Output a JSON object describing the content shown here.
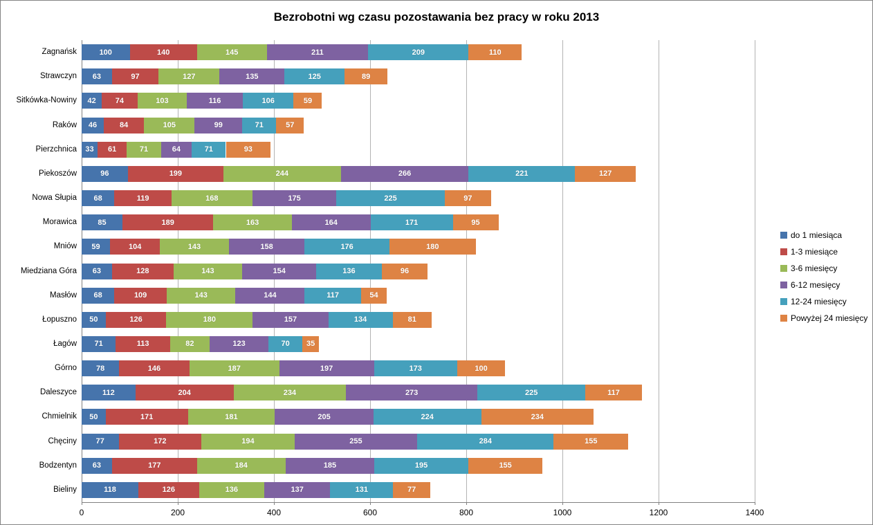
{
  "chart": {
    "title": "Bezrobotni wg czasu pozostawania bez pracy w roku 2013"
  },
  "chart_data": {
    "type": "bar",
    "orientation": "horizontal",
    "stacked": true,
    "title": "Bezrobotni wg czasu pozostawania bez pracy w roku 2013",
    "xlabel": "",
    "ylabel": "",
    "xlim": [
      0,
      1400
    ],
    "x_ticks": [
      0,
      200,
      400,
      600,
      800,
      1000,
      1200,
      1400
    ],
    "grid": "vertical",
    "legend_position": "right",
    "data_labels": true,
    "categories": [
      "Zagnańsk",
      "Strawczyn",
      "Sitkówka-Nowiny",
      "Raków",
      "Pierzchnica",
      "Piekoszów",
      "Nowa Słupia",
      "Morawica",
      "Mniów",
      "Miedziana Góra",
      "Masłów",
      "Łopuszno",
      "Łagów",
      "Górno",
      "Daleszyce",
      "Chmielnik",
      "Chęciny",
      "Bodzentyn",
      "Bieliny"
    ],
    "series": [
      {
        "name": "do 1 miesiąca",
        "color": "#4674ac",
        "values": [
          100,
          63,
          42,
          46,
          33,
          96,
          68,
          85,
          59,
          63,
          68,
          50,
          71,
          78,
          112,
          50,
          77,
          63,
          118
        ]
      },
      {
        "name": "1-3 miesiące",
        "color": "#be4b48",
        "values": [
          140,
          97,
          74,
          84,
          61,
          199,
          119,
          189,
          104,
          128,
          109,
          126,
          113,
          146,
          204,
          171,
          172,
          177,
          126
        ]
      },
      {
        "name": "3-6 miesięcy",
        "color": "#9aba58",
        "values": [
          145,
          127,
          103,
          105,
          71,
          244,
          168,
          163,
          143,
          143,
          143,
          180,
          82,
          187,
          234,
          181,
          194,
          184,
          136
        ]
      },
      {
        "name": "6-12 mesięcy",
        "color": "#7e62a1",
        "values": [
          211,
          135,
          116,
          99,
          64,
          266,
          175,
          164,
          158,
          154,
          144,
          157,
          123,
          197,
          273,
          205,
          255,
          185,
          137
        ]
      },
      {
        "name": "12-24 miesięcy",
        "color": "#45a0bc",
        "values": [
          209,
          125,
          106,
          71,
          71,
          221,
          225,
          171,
          176,
          136,
          117,
          134,
          70,
          173,
          225,
          224,
          284,
          195,
          131
        ]
      },
      {
        "name": "Powyżej 24 miesięcy",
        "color": "#de8344",
        "values": [
          110,
          89,
          59,
          57,
          93,
          127,
          97,
          95,
          180,
          96,
          54,
          81,
          35,
          100,
          117,
          234,
          155,
          155,
          77
        ]
      }
    ]
  }
}
